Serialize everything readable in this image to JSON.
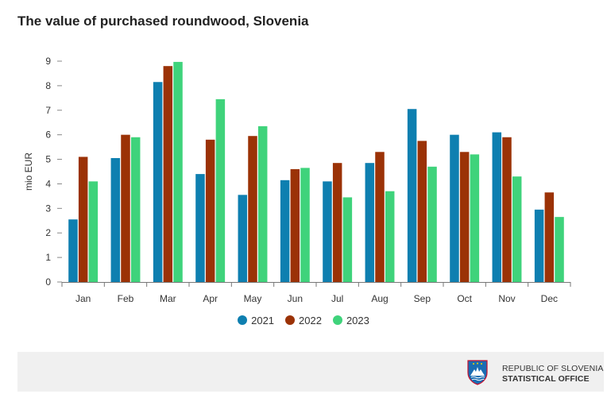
{
  "chart_data": {
    "type": "bar",
    "title": "The value of purchased roundwood, Slovenia",
    "ylabel": "mio EUR",
    "xlabel": "",
    "ylim": [
      0,
      9
    ],
    "yticks": [
      0,
      1,
      2,
      3,
      4,
      5,
      6,
      7,
      8,
      9
    ],
    "grid": false,
    "legend_position": "bottom",
    "categories": [
      "Jan",
      "Feb",
      "Mar",
      "Apr",
      "May",
      "Jun",
      "Jul",
      "Aug",
      "Sep",
      "Oct",
      "Nov",
      "Dec"
    ],
    "series": [
      {
        "name": "2021",
        "color": "#0e7fb0",
        "values": [
          2.55,
          5.05,
          8.15,
          4.4,
          3.55,
          4.15,
          4.1,
          4.85,
          7.05,
          6.0,
          6.1,
          2.95
        ]
      },
      {
        "name": "2022",
        "color": "#9b3206",
        "values": [
          5.1,
          6.0,
          8.8,
          5.8,
          5.95,
          4.6,
          4.85,
          5.3,
          5.75,
          5.3,
          5.9,
          3.65
        ]
      },
      {
        "name": "2023",
        "color": "#3fd37b",
        "values": [
          4.1,
          5.9,
          8.97,
          7.45,
          6.35,
          4.65,
          3.45,
          3.7,
          4.7,
          5.2,
          4.3,
          2.65
        ]
      }
    ]
  },
  "footer": {
    "org_line1": "REPUBLIC OF SLOVENIA",
    "org_line2": "STATISTICAL OFFICE",
    "logo_icon": "slovenia-coat-of-arms-icon"
  }
}
